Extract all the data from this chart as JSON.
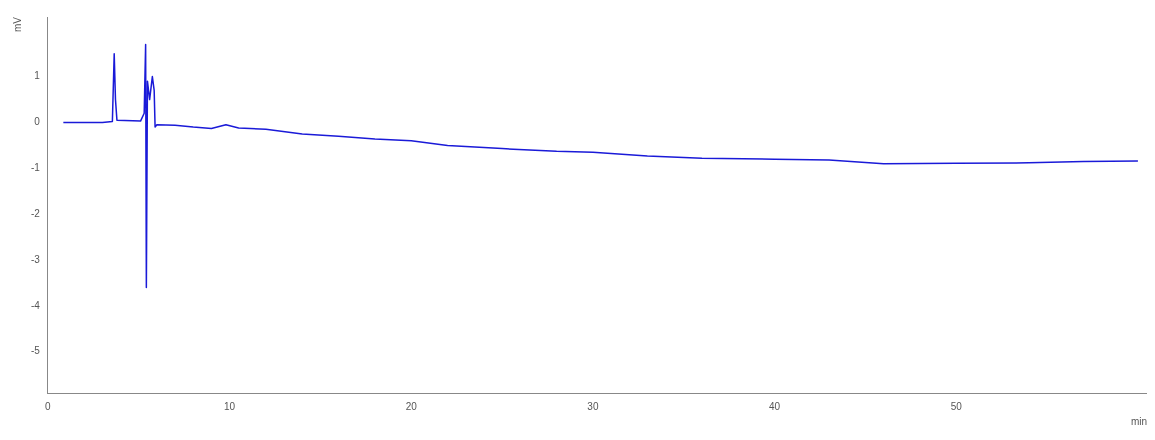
{
  "chart_data": {
    "type": "line",
    "xlabel": "min",
    "ylabel": "mV",
    "x": [
      0.85,
      3.0,
      3.55,
      3.65,
      3.72,
      3.8,
      5.1,
      5.3,
      5.38,
      5.42,
      5.48,
      5.6,
      5.75,
      5.85,
      5.9,
      6.0,
      7,
      8,
      9,
      9.8,
      10.5,
      12,
      14,
      16,
      18,
      20,
      22,
      25,
      28,
      30,
      33,
      36,
      40,
      43,
      46,
      50,
      54,
      57,
      60
    ],
    "series": [
      {
        "color": "#1a1ad8",
        "values": [
          0,
          0,
          0.02,
          1.5,
          0.5,
          0.05,
          0.03,
          0.2,
          1.7,
          -3.6,
          0.9,
          0.5,
          1.0,
          0.7,
          -0.1,
          -0.05,
          -0.06,
          -0.1,
          -0.13,
          -0.05,
          -0.12,
          -0.15,
          -0.25,
          -0.3,
          -0.36,
          -0.4,
          -0.5,
          -0.57,
          -0.63,
          -0.65,
          -0.73,
          -0.78,
          -0.8,
          -0.82,
          -0.9,
          -0.89,
          -0.88,
          -0.85,
          -0.84
        ]
      }
    ],
    "xlim": [
      0,
      60.5
    ],
    "xticks": [
      0,
      10,
      20,
      30,
      40,
      50
    ],
    "ylim": [
      -5.9,
      2.3
    ],
    "yticks": [
      1,
      0,
      -1,
      -2,
      -3,
      -4,
      -5
    ],
    "grid": false,
    "legend": false,
    "marker": "none",
    "line_style": "solid"
  }
}
